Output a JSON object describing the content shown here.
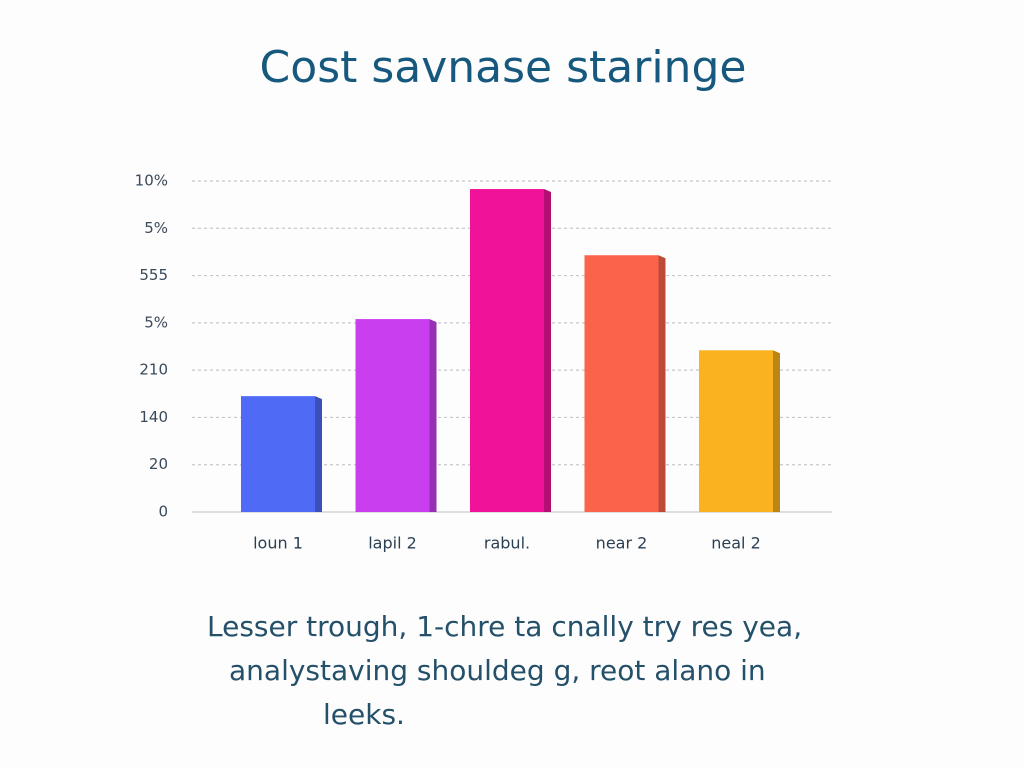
{
  "chart_data": {
    "type": "bar",
    "title": "Cost savnase staringe",
    "categories": [
      "loun 1",
      "lapil 2",
      "rabul.",
      "near 2",
      "neal 2"
    ],
    "values": [
      2.45,
      4.08,
      6.83,
      5.43,
      3.42
    ],
    "colors": [
      "#4f6bf5",
      "#c93ff0",
      "#f0139a",
      "#fb634a",
      "#fbb21f"
    ],
    "ylim": [
      0,
      7
    ],
    "yticks": [
      0,
      {
        "value": 1,
        "label": "20"
      },
      {
        "value": 2,
        "label": "140"
      },
      {
        "value": 3,
        "label": "210"
      },
      {
        "value": 4,
        "label": "5%"
      },
      {
        "value": 5,
        "label": "555"
      },
      {
        "value": 6,
        "label": "5%"
      },
      {
        "value": 7,
        "label": "10%"
      }
    ],
    "grid": true,
    "annotations": [
      "Lesser trough, 1-chre ta cnally try res yea,",
      "analystaving shouldeg g, reot alano in",
      "leeks."
    ]
  }
}
